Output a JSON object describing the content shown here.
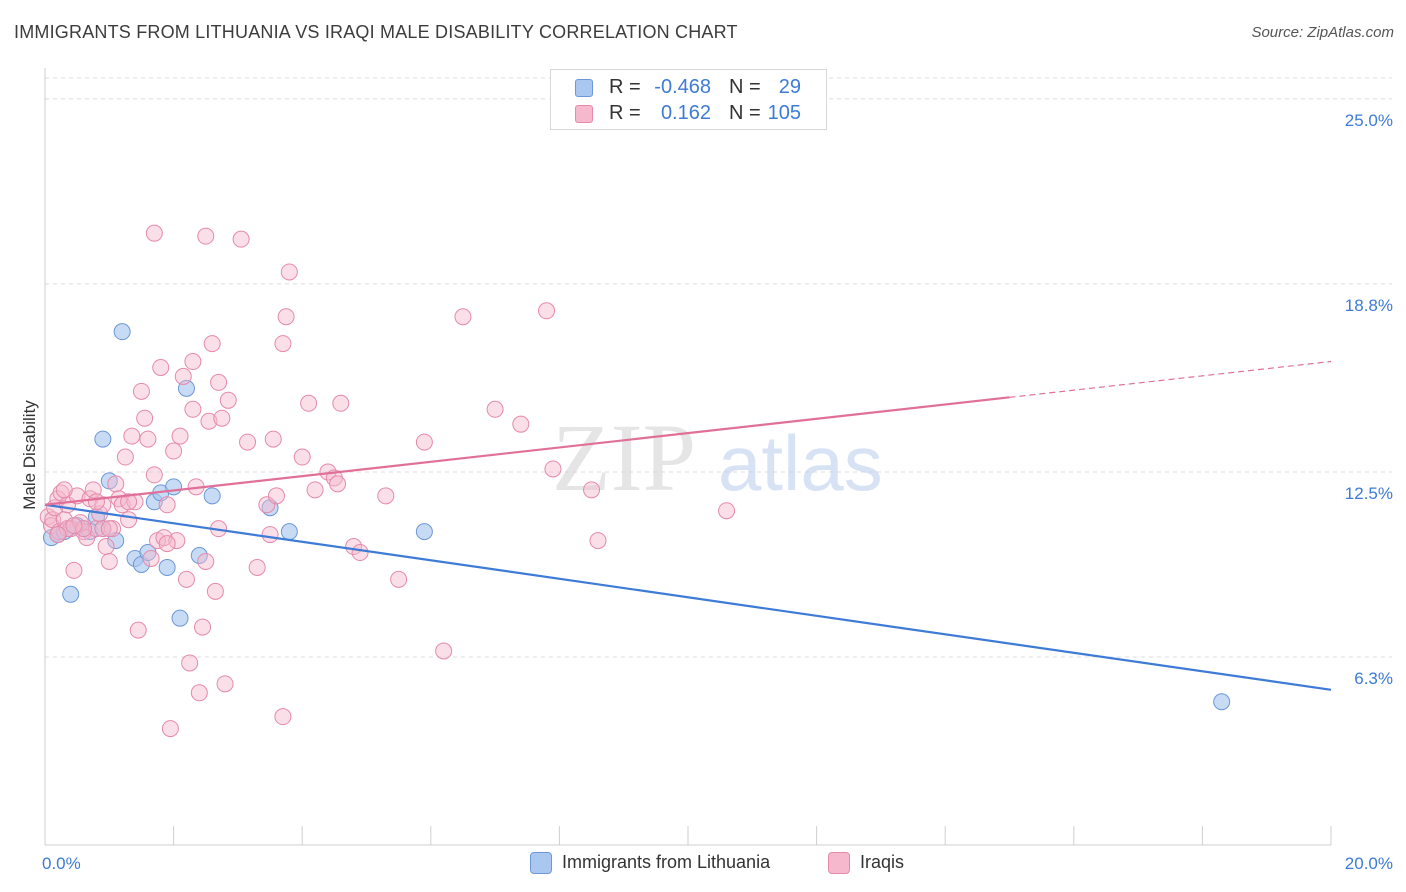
{
  "title": "IMMIGRANTS FROM LITHUANIA VS IRAQI MALE DISABILITY CORRELATION CHART",
  "source": "Source: ZipAtlas.com",
  "watermark": {
    "zip": "ZIP",
    "atlas": "atlas"
  },
  "colors": {
    "blue": "#3d7bd6",
    "blue_fill": "#aac7f0",
    "pink": "#e07098",
    "pink_fill": "#f5b8cc",
    "axis_text": "#3d7bd6",
    "grid": "#dcdcdc"
  },
  "legend": {
    "rows": [
      {
        "r_label": "R =",
        "r_value": "-0.468",
        "n_label": "N =",
        "n_value": "29"
      },
      {
        "r_label": "R =",
        "r_value": "0.162",
        "n_label": "N =",
        "n_value": "105"
      }
    ]
  },
  "bottom_legend": {
    "items": [
      {
        "label": "Immigrants from Lithuania"
      },
      {
        "label": "Iraqis"
      }
    ]
  },
  "chart_data": {
    "type": "scatter",
    "title": "IMMIGRANTS FROM LITHUANIA VS IRAQI MALE DISABILITY CORRELATION CHART",
    "xlabel": "",
    "ylabel": "Male Disability",
    "xlim": [
      0,
      20
    ],
    "ylim": [
      0,
      25.8
    ],
    "x_tick_labels": [
      "0.0%",
      "20.0%"
    ],
    "y_ticks": [
      6.3,
      12.5,
      18.8,
      25.0
    ],
    "y_tick_labels": [
      "6.3%",
      "12.5%",
      "18.8%",
      "25.0%"
    ],
    "grid": true,
    "series": [
      {
        "name": "Immigrants from Lithuania",
        "color": "blue",
        "trend": {
          "x": [
            0.0,
            20.0
          ],
          "y": [
            11.4,
            5.2
          ],
          "dashed_from": null
        },
        "points": [
          [
            0.1,
            10.3
          ],
          [
            0.2,
            10.4
          ],
          [
            0.3,
            10.5
          ],
          [
            0.4,
            8.4
          ],
          [
            0.5,
            10.7
          ],
          [
            0.6,
            10.6
          ],
          [
            0.7,
            10.5
          ],
          [
            0.8,
            11.0
          ],
          [
            0.9,
            13.6
          ],
          [
            1.0,
            12.2
          ],
          [
            1.1,
            10.2
          ],
          [
            1.2,
            17.2
          ],
          [
            1.4,
            9.6
          ],
          [
            1.5,
            9.4
          ],
          [
            1.6,
            9.8
          ],
          [
            1.7,
            11.5
          ],
          [
            1.8,
            11.8
          ],
          [
            1.9,
            9.3
          ],
          [
            2.0,
            12.0
          ],
          [
            2.1,
            7.6
          ],
          [
            2.2,
            15.3
          ],
          [
            2.4,
            9.7
          ],
          [
            2.6,
            11.7
          ],
          [
            3.5,
            11.3
          ],
          [
            3.8,
            10.5
          ],
          [
            5.9,
            10.5
          ],
          [
            18.3,
            4.8
          ],
          [
            0.4,
            10.6
          ],
          [
            0.9,
            10.6
          ]
        ]
      },
      {
        "name": "Iraqis",
        "color": "pink",
        "trend": {
          "x": [
            0.0,
            20.0
          ],
          "y": [
            11.4,
            16.2
          ],
          "dashed_from": 15.0
        },
        "points": [
          [
            0.05,
            11.0
          ],
          [
            0.1,
            10.7
          ],
          [
            0.12,
            10.9
          ],
          [
            0.15,
            11.3
          ],
          [
            0.2,
            11.6
          ],
          [
            0.22,
            10.5
          ],
          [
            0.25,
            11.8
          ],
          [
            0.3,
            10.9
          ],
          [
            0.35,
            11.4
          ],
          [
            0.4,
            10.6
          ],
          [
            0.45,
            9.2
          ],
          [
            0.5,
            11.7
          ],
          [
            0.55,
            10.8
          ],
          [
            0.6,
            10.5
          ],
          [
            0.65,
            10.3
          ],
          [
            0.7,
            11.6
          ],
          [
            0.75,
            11.9
          ],
          [
            0.8,
            10.6
          ],
          [
            0.85,
            11.1
          ],
          [
            0.9,
            11.4
          ],
          [
            0.95,
            10.0
          ],
          [
            1.0,
            9.5
          ],
          [
            1.05,
            10.6
          ],
          [
            1.1,
            12.1
          ],
          [
            1.15,
            11.6
          ],
          [
            1.2,
            11.4
          ],
          [
            1.25,
            13.0
          ],
          [
            1.3,
            10.9
          ],
          [
            1.35,
            13.7
          ],
          [
            1.4,
            11.5
          ],
          [
            1.45,
            7.2
          ],
          [
            1.5,
            15.2
          ],
          [
            1.55,
            14.3
          ],
          [
            1.6,
            13.6
          ],
          [
            1.65,
            9.6
          ],
          [
            1.7,
            12.4
          ],
          [
            1.75,
            10.2
          ],
          [
            1.8,
            16.0
          ],
          [
            1.85,
            10.3
          ],
          [
            1.9,
            11.4
          ],
          [
            1.95,
            3.9
          ],
          [
            2.0,
            13.2
          ],
          [
            2.05,
            10.2
          ],
          [
            2.1,
            13.7
          ],
          [
            2.15,
            15.7
          ],
          [
            2.2,
            8.9
          ],
          [
            2.25,
            6.1
          ],
          [
            2.3,
            16.2
          ],
          [
            2.35,
            12.0
          ],
          [
            2.4,
            5.1
          ],
          [
            2.45,
            7.3
          ],
          [
            2.5,
            9.5
          ],
          [
            2.55,
            14.2
          ],
          [
            2.6,
            16.8
          ],
          [
            2.65,
            8.5
          ],
          [
            2.7,
            15.5
          ],
          [
            2.75,
            14.3
          ],
          [
            2.8,
            5.4
          ],
          [
            2.85,
            14.9
          ],
          [
            0.3,
            11.9
          ],
          [
            1.7,
            20.5
          ],
          [
            2.5,
            20.4
          ],
          [
            3.05,
            20.3
          ],
          [
            3.15,
            13.5
          ],
          [
            3.3,
            9.3
          ],
          [
            3.45,
            11.4
          ],
          [
            3.5,
            10.4
          ],
          [
            3.55,
            13.6
          ],
          [
            3.6,
            11.7
          ],
          [
            3.7,
            4.3
          ],
          [
            3.7,
            16.8
          ],
          [
            3.75,
            17.7
          ],
          [
            3.8,
            19.2
          ],
          [
            4.0,
            13.0
          ],
          [
            4.1,
            14.8
          ],
          [
            4.2,
            11.9
          ],
          [
            4.4,
            12.5
          ],
          [
            4.5,
            12.3
          ],
          [
            4.55,
            12.1
          ],
          [
            4.6,
            14.8
          ],
          [
            4.8,
            10.0
          ],
          [
            4.9,
            9.8
          ],
          [
            5.3,
            11.7
          ],
          [
            5.5,
            8.9
          ],
          [
            5.9,
            13.5
          ],
          [
            6.2,
            6.5
          ],
          [
            6.5,
            17.7
          ],
          [
            7.0,
            14.6
          ],
          [
            7.4,
            14.1
          ],
          [
            7.8,
            17.9
          ],
          [
            7.9,
            12.6
          ],
          [
            8.5,
            11.9
          ],
          [
            8.6,
            10.2
          ],
          [
            10.6,
            11.2
          ],
          [
            2.3,
            14.6
          ],
          [
            1.3,
            11.5
          ],
          [
            0.9,
            10.6
          ],
          [
            0.35,
            10.6
          ],
          [
            0.6,
            10.6
          ],
          [
            1.0,
            10.6
          ],
          [
            0.45,
            10.7
          ],
          [
            0.8,
            11.5
          ],
          [
            0.2,
            10.4
          ],
          [
            1.9,
            10.1
          ],
          [
            2.7,
            10.6
          ]
        ]
      }
    ]
  }
}
